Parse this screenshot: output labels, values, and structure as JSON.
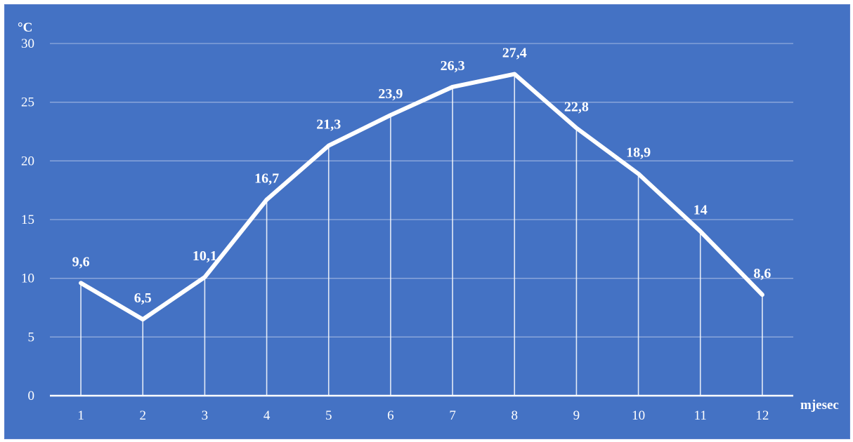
{
  "chart_data": {
    "type": "line",
    "x": [
      1,
      2,
      3,
      4,
      5,
      6,
      7,
      8,
      9,
      10,
      11,
      12
    ],
    "series": [
      {
        "values": [
          9.6,
          6.5,
          10.1,
          16.7,
          21.3,
          23.9,
          26.3,
          27.4,
          22.8,
          18.9,
          14,
          8.6
        ],
        "data_labels": [
          "9,6",
          "6,5",
          "10,1",
          "16,7",
          "21,3",
          "23,9",
          "26,3",
          "27,4",
          "22,8",
          "18,9",
          "14",
          "8,6"
        ],
        "color": "#ffffff"
      }
    ],
    "xlabel": "mjesec",
    "ylabel": "°C",
    "ylim": [
      0,
      30
    ],
    "yticks": [
      0,
      5,
      10,
      15,
      20,
      25,
      30
    ],
    "grid": "horizontal",
    "drop_lines": true,
    "background_color": "#4472c4",
    "gridline_color": "#8faadc",
    "line_color": "#ffffff"
  }
}
